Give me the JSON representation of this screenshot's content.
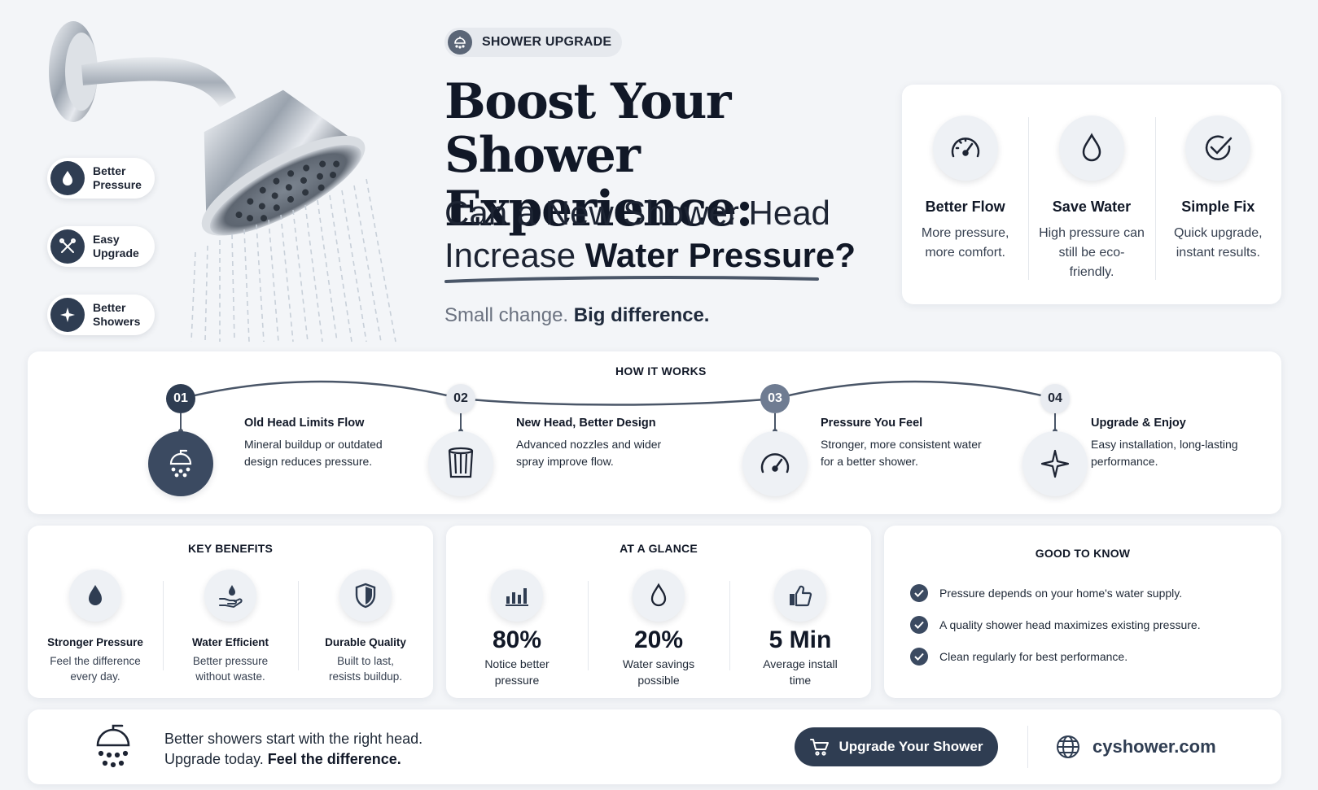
{
  "hero": {
    "badge": "SHOWER UPGRADE",
    "title_line1": "Boost Your",
    "title_line2": "Shower Experience:",
    "subtitle_line1": "Can a New Shower Head",
    "subtitle_line2_a": "Increase ",
    "subtitle_line2_b": "Water Pressure?",
    "tagline_a": "Small change. ",
    "tagline_b": "Big difference.",
    "pills": [
      {
        "line1": "Better",
        "line2": "Pressure",
        "icon": "drop-icon"
      },
      {
        "line1": "Easy",
        "line2": "Upgrade",
        "icon": "tools-icon"
      },
      {
        "line1": "Better",
        "line2": "Showers",
        "icon": "sparkle-icon"
      }
    ]
  },
  "features": [
    {
      "title": "Better Flow",
      "desc": "More pressure, more comfort.",
      "icon": "gauge-icon"
    },
    {
      "title": "Save Water",
      "desc": "High pressure can still be eco-friendly.",
      "icon": "drop-icon"
    },
    {
      "title": "Simple Fix",
      "desc": "Quick upgrade, instant results.",
      "icon": "check-circle-icon"
    }
  ],
  "how": {
    "title": "HOW IT WORKS",
    "steps": [
      {
        "num": "01",
        "title": "Old Head Limits Flow",
        "desc": "Mineral buildup or outdated design reduces pressure.",
        "icon": "shower-icon"
      },
      {
        "num": "02",
        "title": "New Head, Better Design",
        "desc": "Advanced nozzles and wider spray improve flow.",
        "icon": "nozzle-icon"
      },
      {
        "num": "03",
        "title": "Pressure You Feel",
        "desc": "Stronger, more consistent water for a better shower.",
        "icon": "gauge-icon"
      },
      {
        "num": "04",
        "title": "Upgrade & Enjoy",
        "desc": "Easy installation, long-lasting performance.",
        "icon": "sparkle-icon"
      }
    ]
  },
  "benefits": {
    "title": "KEY BENEFITS",
    "items": [
      {
        "title": "Stronger Pressure",
        "desc": "Feel the difference every day.",
        "icon": "drop-icon"
      },
      {
        "title": "Water Efficient",
        "desc": "Better pressure without waste.",
        "icon": "hand-drop-icon"
      },
      {
        "title": "Durable Quality",
        "desc": "Built to last, resists buildup.",
        "icon": "shield-icon"
      }
    ]
  },
  "glance": {
    "title": "AT A GLANCE",
    "items": [
      {
        "value": "80%",
        "desc": "Notice better pressure",
        "icon": "bar-chart-icon"
      },
      {
        "value": "20%",
        "desc": "Water savings possible",
        "icon": "drop-icon"
      },
      {
        "value": "5 Min",
        "desc": "Average install time",
        "icon": "thumbs-up-icon"
      }
    ]
  },
  "good": {
    "title": "GOOD TO KNOW",
    "items": [
      "Pressure depends on your home's water supply.",
      "A quality shower head maximizes existing pressure.",
      "Clean regularly for best performance."
    ]
  },
  "footer": {
    "line1": "Better showers start with the right head.",
    "line2_a": "Upgrade today. ",
    "line2_b": "Feel the difference.",
    "cta": "Upgrade Your Shower",
    "site": "cyshower.com"
  },
  "colors": {
    "primary": "#2f3d52",
    "background": "#f3f5f8",
    "card": "#ffffff",
    "muted": "#6b7280"
  }
}
